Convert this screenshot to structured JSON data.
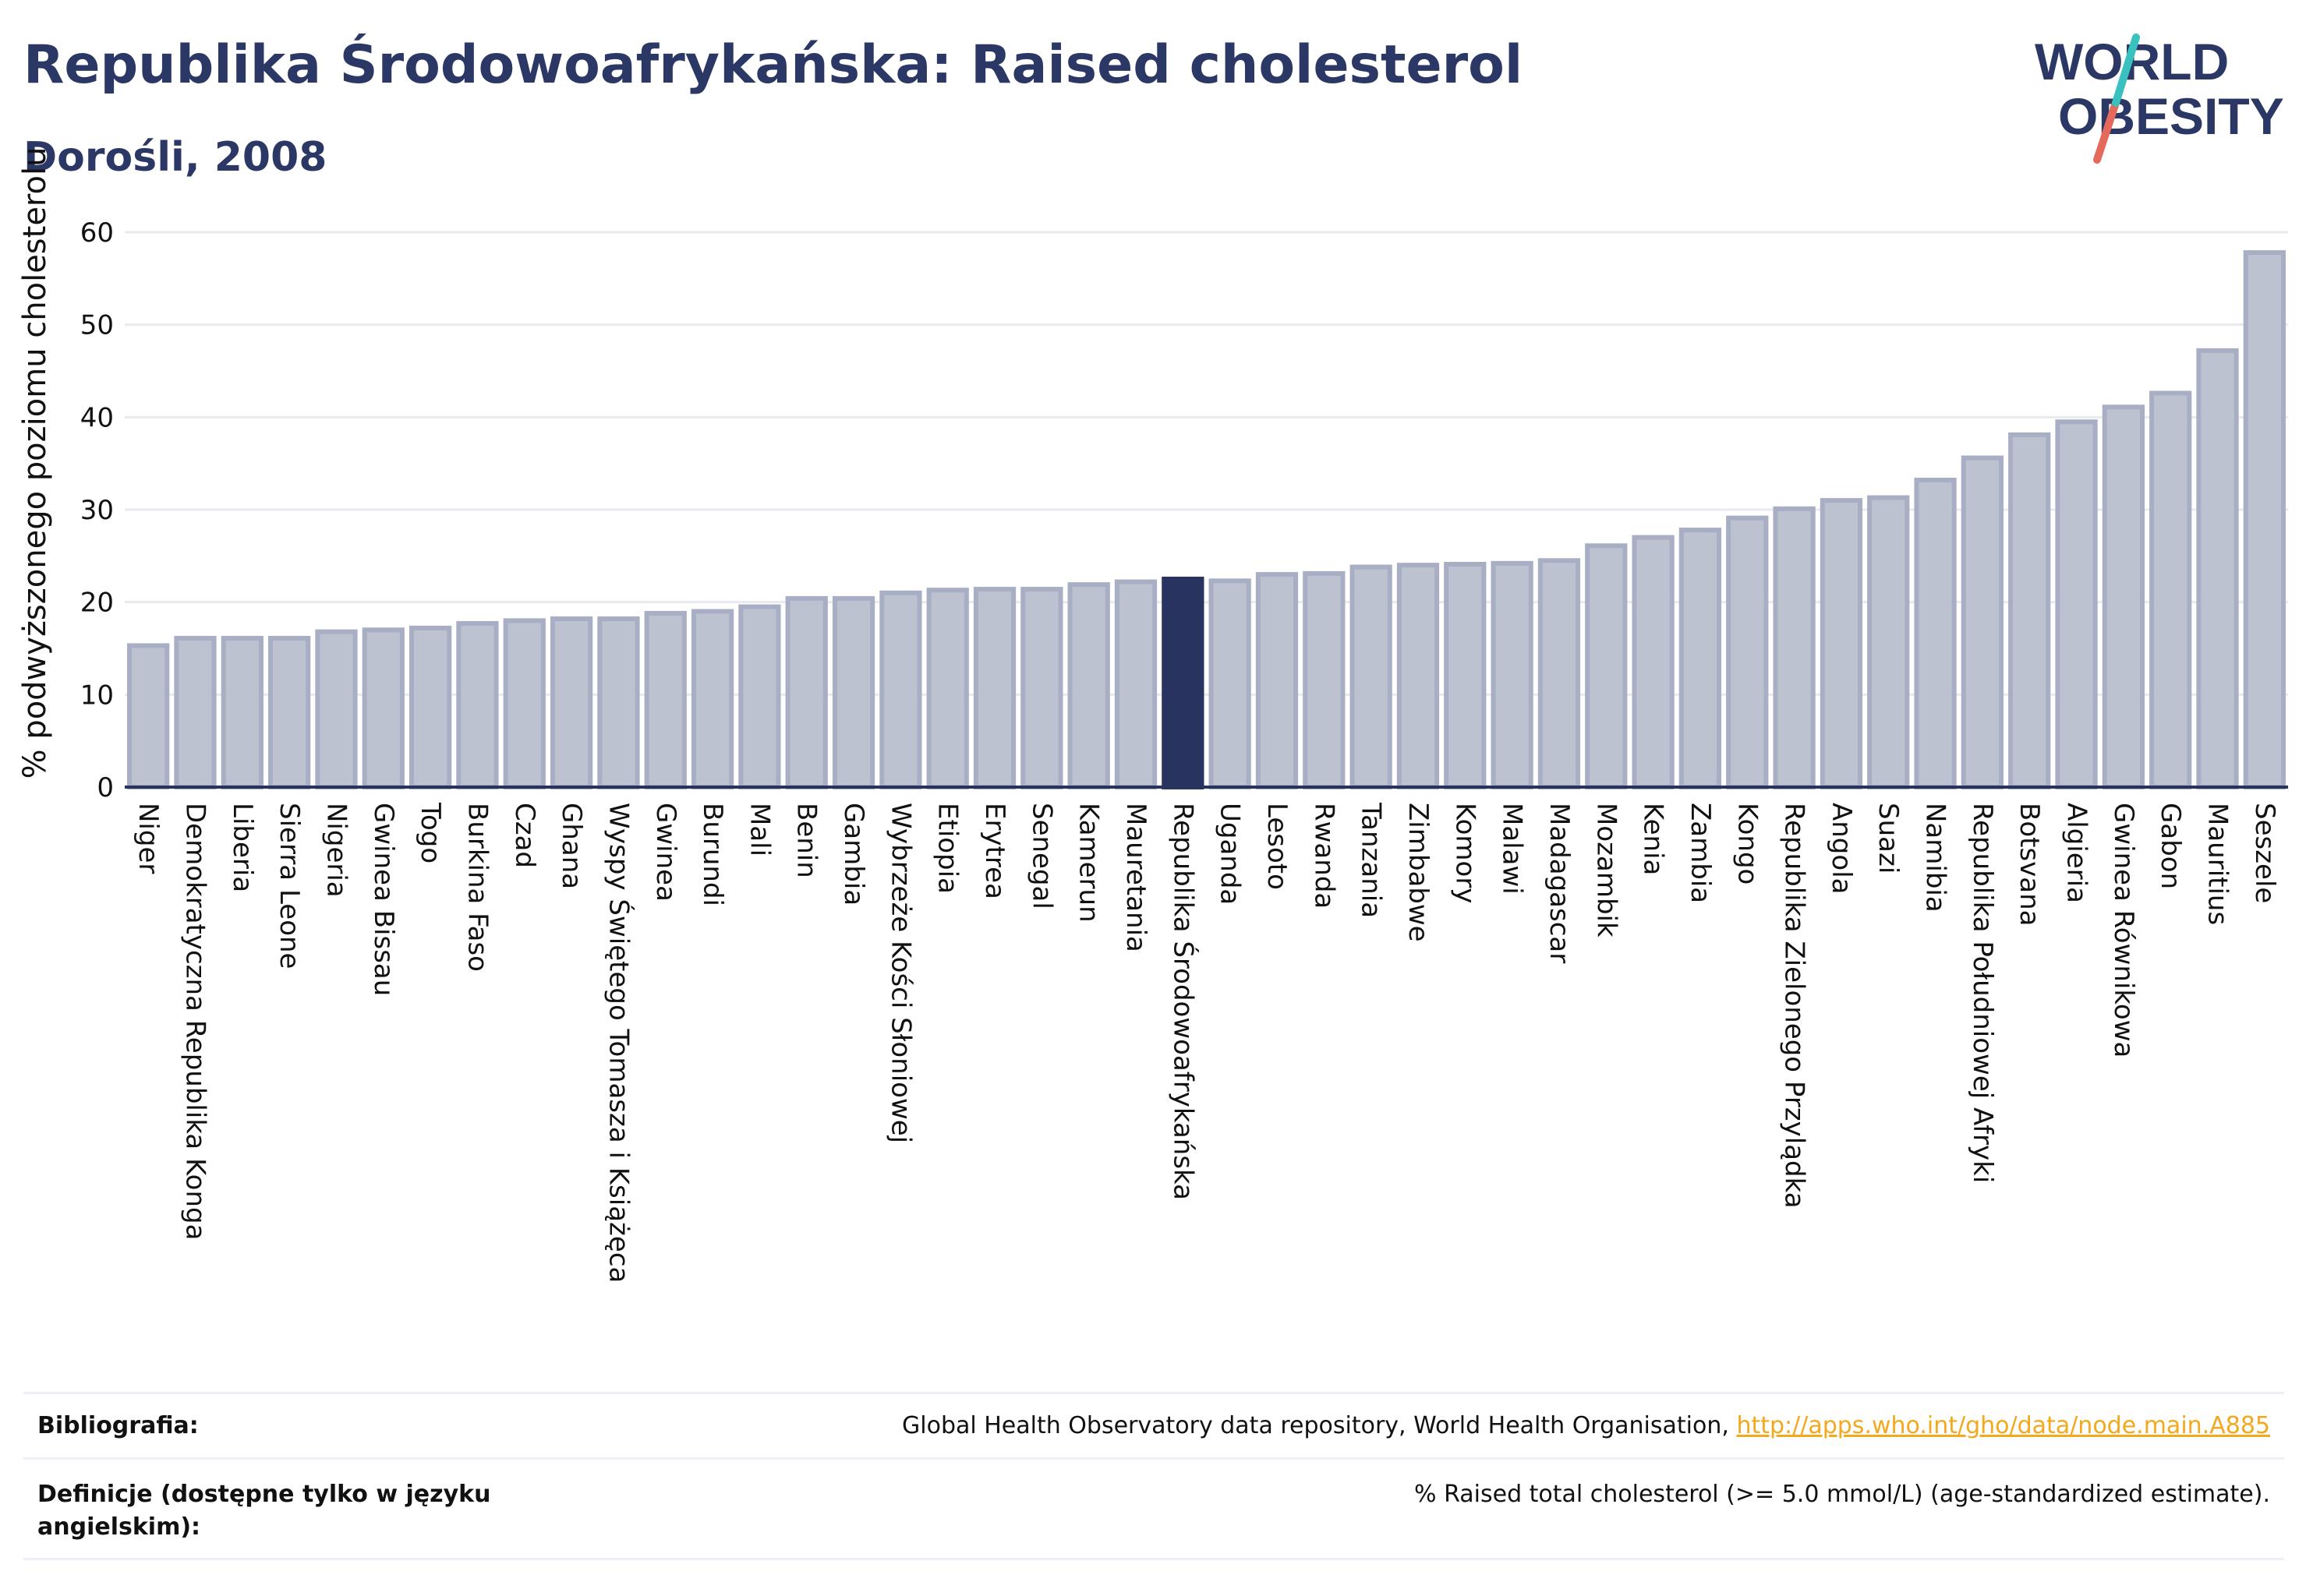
{
  "header": {
    "title": "Republika Środowoafrykańska: Raised cholesterol",
    "subtitle": "Dorośli, 2008",
    "logo_line1": "WORLD",
    "logo_line2": "OBESITY"
  },
  "colors": {
    "title": "#2b3764",
    "bar": "#bdc2d1",
    "bar_stroke": "#a8aec3",
    "highlight": "#28345f",
    "grid": "#e8eaf0",
    "link": "#f4a81d",
    "logo_teal": "#39c1c0",
    "logo_red": "#e46a5c"
  },
  "chart_data": {
    "type": "bar",
    "ylabel": "% podwyższonego poziomu cholesterolu",
    "ylim": [
      0,
      60
    ],
    "yticks": [
      0,
      10,
      20,
      30,
      40,
      50,
      60
    ],
    "grid": true,
    "highlight": "Republika Środowoafrykańska",
    "categories": [
      "Niger",
      "Demokratyczna Republika Konga",
      "Liberia",
      "Sierra Leone",
      "Nigeria",
      "Gwinea Bissau",
      "Togo",
      "Burkina Faso",
      "Czad",
      "Ghana",
      "Wyspy Świętego Tomasza i Książęca",
      "Gwinea",
      "Burundi",
      "Mali",
      "Benin",
      "Gambia",
      "Wybrzeże Kości Słoniowej",
      "Etiopia",
      "Erytrea",
      "Senegal",
      "Kamerun",
      "Mauretania",
      "Republika Środowoafrykańska",
      "Uganda",
      "Lesoto",
      "Rwanda",
      "Tanzania",
      "Zimbabwe",
      "Komory",
      "Malawi",
      "Madagascar",
      "Mozambik",
      "Kenia",
      "Zambia",
      "Kongo",
      "Republika Zielonego Przylądka",
      "Angola",
      "Suazi",
      "Namibia",
      "Republika Południowej Afryki",
      "Botsvana",
      "Algieria",
      "Gwinea Równikowa",
      "Gabon",
      "Mauritius",
      "Seszele"
    ],
    "values": [
      15.3,
      16.1,
      16.1,
      16.1,
      16.8,
      17.0,
      17.2,
      17.7,
      18.0,
      18.2,
      18.2,
      18.8,
      19.0,
      19.5,
      20.4,
      20.4,
      21.0,
      21.3,
      21.4,
      21.4,
      21.9,
      22.2,
      22.5,
      22.3,
      23.0,
      23.1,
      23.8,
      24.0,
      24.1,
      24.2,
      24.5,
      26.1,
      27.0,
      27.8,
      29.1,
      30.1,
      31.0,
      31.3,
      33.2,
      35.6,
      38.1,
      39.5,
      41.1,
      42.6,
      47.2,
      57.8
    ]
  },
  "footer": {
    "bibliography_label": "Bibliografia:",
    "bibliography_text": "Global Health Observatory data repository, World Health Organisation, ",
    "bibliography_link": "http://apps.who.int/gho/data/node.main.A885",
    "definitions_label": "Definicje (dostępne tylko w języku angielskim):",
    "definitions_text": "% Raised total cholesterol (>= 5.0 mmol/L) (age-standardized estimate)."
  }
}
